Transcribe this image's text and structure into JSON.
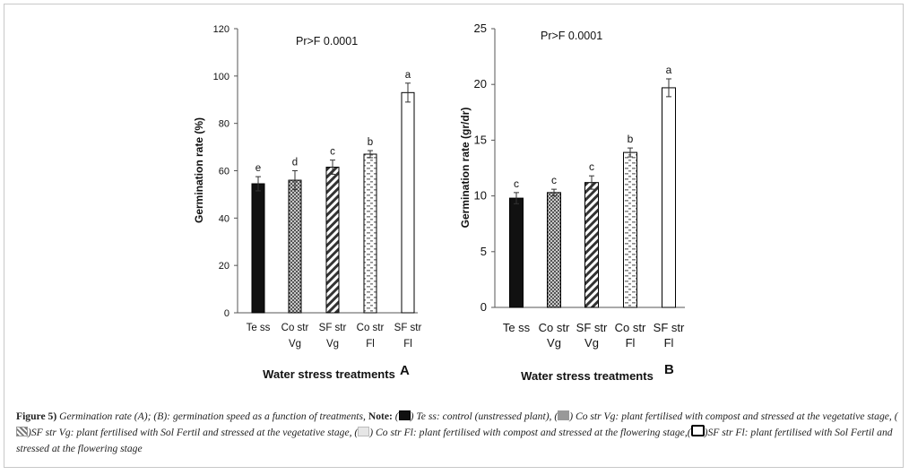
{
  "chart_data": [
    {
      "type": "bar",
      "panel": "A",
      "annotation": "Pr>F 0.0001",
      "xlabel": "Water stress treatments",
      "ylabel": "Germination rate (%)",
      "ylim": [
        0,
        120
      ],
      "yticks": [
        0,
        20,
        40,
        60,
        80,
        100,
        120
      ],
      "categories": [
        [
          "Te ss"
        ],
        [
          "Co str",
          "Vg"
        ],
        [
          "SF str",
          "Vg"
        ],
        [
          "Co str",
          "Fl"
        ],
        [
          "SF str",
          "Fl"
        ]
      ],
      "values": [
        54.5,
        56,
        61.5,
        67,
        93
      ],
      "errors": [
        3,
        4,
        3,
        1.5,
        4
      ],
      "letters": [
        "e",
        "d",
        "c",
        "b",
        "a"
      ],
      "patterns": [
        "solid",
        "checker",
        "diag",
        "dash",
        "empty"
      ]
    },
    {
      "type": "bar",
      "panel": "B",
      "annotation": "Pr>F 0.0001",
      "xlabel": "Water stress treatments",
      "ylabel": "Germination rate (gr/dr)",
      "ylim": [
        0,
        25
      ],
      "yticks": [
        0,
        5,
        10,
        15,
        20,
        25
      ],
      "categories": [
        [
          "Te ss"
        ],
        [
          "Co str",
          "Vg"
        ],
        [
          "SF str",
          "Vg"
        ],
        [
          "Co str",
          "Fl"
        ],
        [
          "SF str",
          "Fl"
        ]
      ],
      "values": [
        9.8,
        10.3,
        11.2,
        13.9,
        19.7
      ],
      "errors": [
        0.5,
        0.3,
        0.6,
        0.4,
        0.8
      ],
      "letters": [
        "c",
        "c",
        "c",
        "b",
        "a"
      ],
      "patterns": [
        "solid",
        "checker",
        "diag",
        "dash",
        "empty"
      ]
    }
  ],
  "caption": {
    "figure": "Figure 5)",
    "text1": " Germination rate (A); (B): germination speed as a function of treatments, ",
    "note": "Note:",
    "p1": " (",
    "p2": ") Te ss: control (unstressed plant), (",
    "p3": ") Co str Vg: plant fertilised with compost and stressed at the vegetative stage, (",
    "p4": ")SF str Vg: plant fertilised with Sol Fertil and stressed at the vegetative stage, (",
    "p5": ") Co str Fl: plant fertilised with compost and stressed at the flowering stage,(",
    "p6": ")SF str Fl: plant fertilised with Sol Fertil and stressed at the flowering stage"
  }
}
